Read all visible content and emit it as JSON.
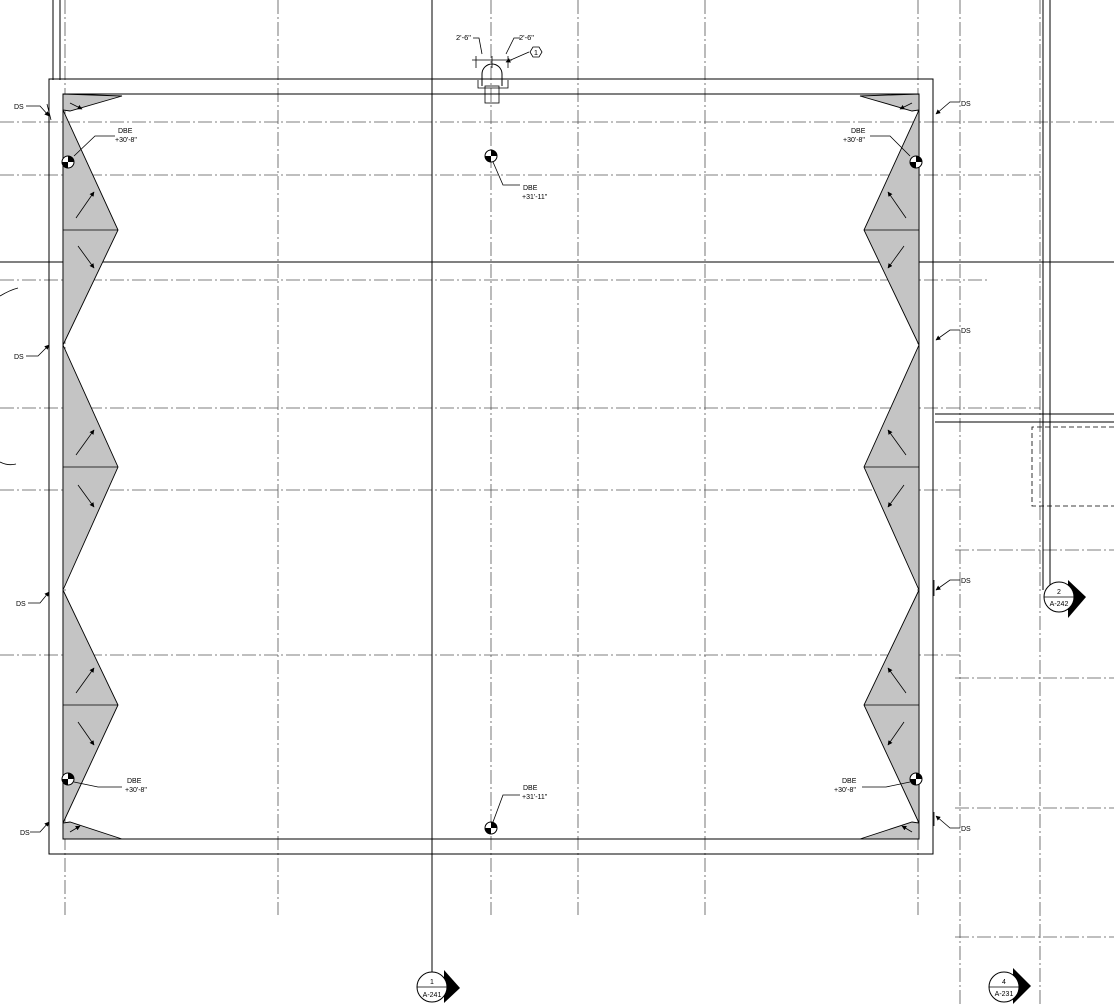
{
  "drawing": {
    "dimensions": {
      "left": "2'-6\"",
      "right": "2'-6\""
    },
    "keynote": "1",
    "downspouts": [
      {
        "id": "ds-left-1",
        "label": "DS"
      },
      {
        "id": "ds-left-2",
        "label": "DS"
      },
      {
        "id": "ds-left-3",
        "label": "DS"
      },
      {
        "id": "ds-left-4",
        "label": "DS"
      },
      {
        "id": "ds-right-1",
        "label": "DS"
      },
      {
        "id": "ds-right-2",
        "label": "DS"
      },
      {
        "id": "ds-right-3",
        "label": "DS"
      },
      {
        "id": "ds-right-4",
        "label": "DS"
      }
    ],
    "drains": [
      {
        "id": "drain-tl",
        "label": "DBE",
        "elev": "+30'-8\""
      },
      {
        "id": "drain-tc",
        "label": "DBE",
        "elev": "+31'-11\""
      },
      {
        "id": "drain-tr",
        "label": "DBE",
        "elev": "+30'-8\""
      },
      {
        "id": "drain-bl",
        "label": "DBE",
        "elev": "+30'-8\""
      },
      {
        "id": "drain-bc",
        "label": "DBE",
        "elev": "+31'-11\""
      },
      {
        "id": "drain-br",
        "label": "DBE",
        "elev": "+30'-8\""
      }
    ],
    "section_markers": [
      {
        "id": "section-1",
        "number": "1",
        "sheet": "A-241"
      },
      {
        "id": "section-2",
        "number": "2",
        "sheet": "A-242"
      },
      {
        "id": "section-4",
        "number": "4",
        "sheet": "A-231"
      }
    ]
  }
}
